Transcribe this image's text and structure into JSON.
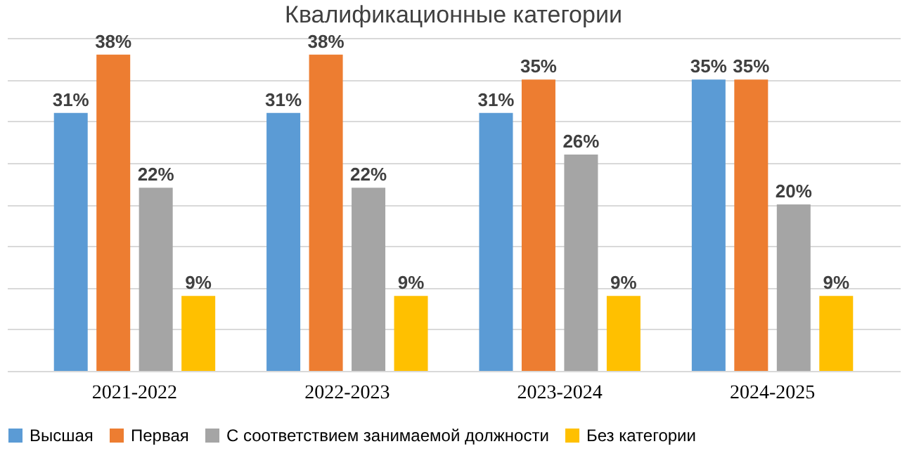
{
  "chart_data": {
    "type": "bar",
    "title": "Квалификационные категории",
    "categories": [
      "2021-2022",
      "2022-2023",
      "2023-2024",
      "2024-2025"
    ],
    "series": [
      {
        "name": "Высшая",
        "color": "#5b9bd5",
        "values": [
          31,
          31,
          31,
          35
        ],
        "value_labels": [
          "31%",
          "31%",
          "31%",
          "35%"
        ]
      },
      {
        "name": "Первая",
        "color": "#ed7d31",
        "values": [
          38,
          38,
          35,
          35
        ],
        "value_labels": [
          "38%",
          "38%",
          "35%",
          "35%"
        ]
      },
      {
        "name": "С соответствием занимаемой должности",
        "color": "#a5a5a5",
        "values": [
          22,
          22,
          26,
          20
        ],
        "value_labels": [
          "22%",
          "22%",
          "26%",
          "20%"
        ]
      },
      {
        "name": "Без категории",
        "color": "#ffc000",
        "values": [
          9,
          9,
          9,
          9
        ],
        "value_labels": [
          "9%",
          "9%",
          "9%",
          "9%"
        ]
      }
    ],
    "ylim": [
      0,
      40
    ],
    "yticks": [
      {
        "value": 0,
        "label": null
      },
      {
        "value": 5,
        "label": null
      },
      {
        "value": 10,
        "label": null
      },
      {
        "value": 15,
        "label": null
      },
      {
        "value": 20,
        "label": null
      },
      {
        "value": 25,
        "label": null
      },
      {
        "value": 30,
        "label": null
      },
      {
        "value": 35,
        "label": null
      },
      {
        "value": 40,
        "label": null
      }
    ],
    "tick_labels": "x",
    "grid": "y",
    "legend": "bottom"
  }
}
